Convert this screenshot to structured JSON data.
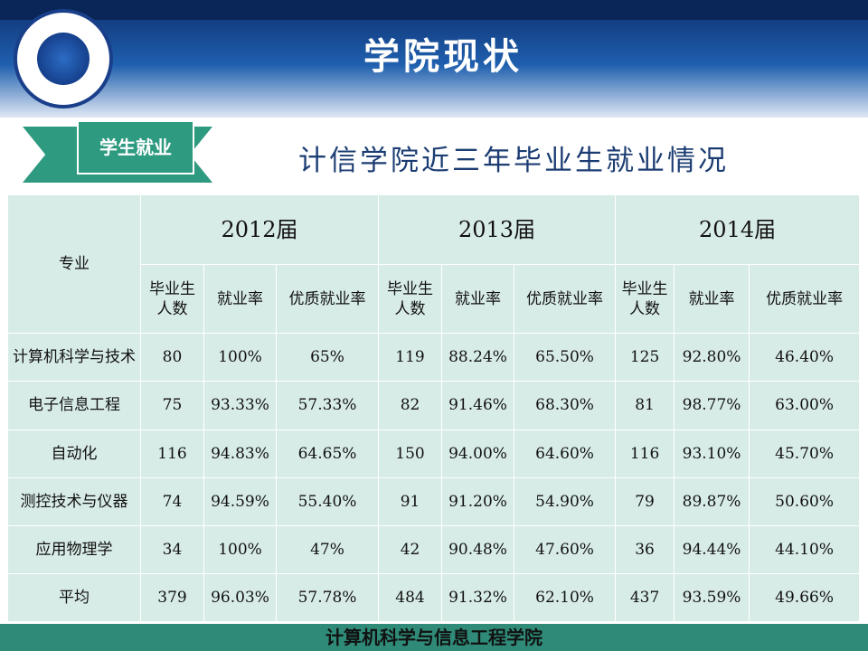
{
  "header": {
    "title": "学院现状"
  },
  "section_tag": "学生就业",
  "subtitle": "计信学院近三年毕业生就业情况",
  "table": {
    "header": [
      "专业",
      "2012届",
      "2013届",
      "2014届"
    ],
    "subheader": [
      "毕业生人数",
      "就业率",
      "优质就业率",
      "毕业生人数",
      "就业率",
      "优质就业率",
      "毕业生人数",
      "就业率",
      "优质就业率"
    ],
    "rows": [
      [
        "计算机科学与技术",
        "80",
        "100%",
        "65%",
        "119",
        "88.24%",
        "65.50%",
        "125",
        "92.80%",
        "46.40%"
      ],
      [
        "电子信息工程",
        "75",
        "93.33%",
        "57.33%",
        "82",
        "91.46%",
        "68.30%",
        "81",
        "98.77%",
        "63.00%"
      ],
      [
        "自动化",
        "116",
        "94.83%",
        "64.65%",
        "150",
        "94.00%",
        "64.60%",
        "116",
        "93.10%",
        "45.70%"
      ],
      [
        "测控技术与仪器",
        "74",
        "94.59%",
        "55.40%",
        "91",
        "91.20%",
        "54.90%",
        "79",
        "89.87%",
        "50.60%"
      ],
      [
        "应用物理学",
        "34",
        "100%",
        "47%",
        "42",
        "90.48%",
        "47.60%",
        "36",
        "94.44%",
        "44.10%"
      ],
      [
        "平均",
        "379",
        "96.03%",
        "57.78%",
        "484",
        "91.32%",
        "62.10%",
        "437",
        "93.59%",
        "49.66%"
      ]
    ]
  },
  "footer": "计算机科学与信息工程学院"
}
